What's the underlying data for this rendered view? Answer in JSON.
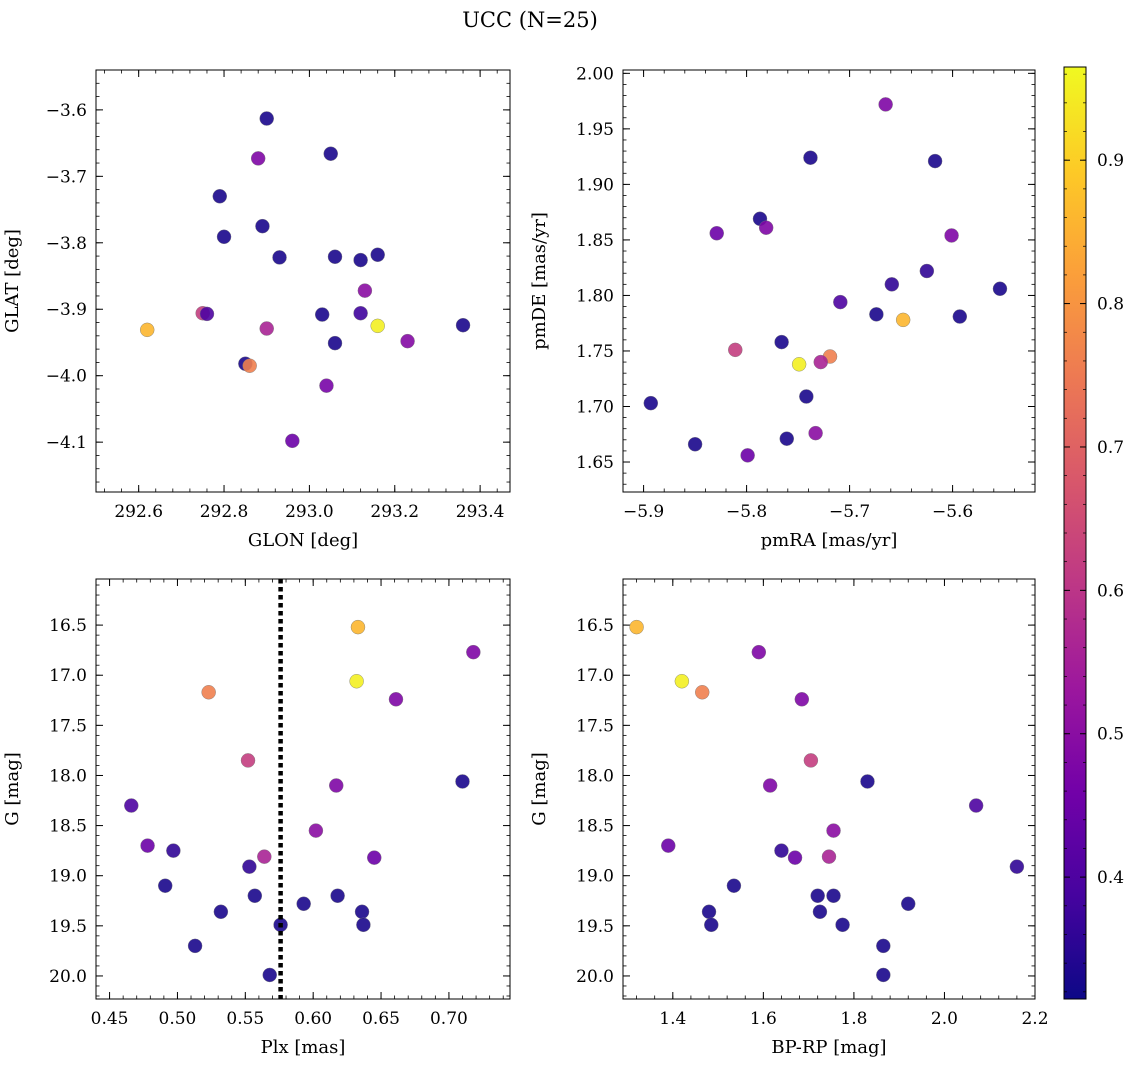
{
  "title": "UCC (N=25)",
  "chart_data": [
    {
      "type": "scatter",
      "xlabel": "GLON [deg]",
      "ylabel": "GLAT [deg]",
      "xlim": [
        292.5,
        293.47
      ],
      "ylim": [
        -4.175,
        -3.54
      ],
      "y_inverted": false,
      "xticks": [
        292.6,
        292.8,
        293.0,
        293.2,
        293.4
      ],
      "yticks": [
        -3.6,
        -3.7,
        -3.8,
        -3.9,
        -4.0,
        -4.1
      ],
      "xtick_labels": [
        "292.6",
        "292.8",
        "293.0",
        "293.2",
        "293.4"
      ],
      "ytick_labels": [
        "−3.6",
        "−3.7",
        "−3.8",
        "−3.9",
        "−4.0",
        "−4.1"
      ],
      "points": [
        {
          "x": 292.9,
          "y": -3.613,
          "c": 0.33
        },
        {
          "x": 293.05,
          "y": -3.666,
          "c": 0.33
        },
        {
          "x": 292.88,
          "y": -3.673,
          "c": 0.48
        },
        {
          "x": 292.79,
          "y": -3.73,
          "c": 0.33
        },
        {
          "x": 292.89,
          "y": -3.775,
          "c": 0.33
        },
        {
          "x": 292.8,
          "y": -3.791,
          "c": 0.33
        },
        {
          "x": 292.93,
          "y": -3.822,
          "c": 0.33
        },
        {
          "x": 293.06,
          "y": -3.821,
          "c": 0.33
        },
        {
          "x": 293.12,
          "y": -3.826,
          "c": 0.33
        },
        {
          "x": 293.16,
          "y": -3.818,
          "c": 0.33
        },
        {
          "x": 293.13,
          "y": -3.872,
          "c": 0.5
        },
        {
          "x": 292.75,
          "y": -3.906,
          "c": 0.62
        },
        {
          "x": 292.76,
          "y": -3.907,
          "c": 0.4
        },
        {
          "x": 293.03,
          "y": -3.908,
          "c": 0.33
        },
        {
          "x": 293.12,
          "y": -3.906,
          "c": 0.38
        },
        {
          "x": 292.62,
          "y": -3.931,
          "c": 0.86
        },
        {
          "x": 292.9,
          "y": -3.929,
          "c": 0.56
        },
        {
          "x": 293.16,
          "y": -3.925,
          "c": 0.95
        },
        {
          "x": 293.36,
          "y": -3.924,
          "c": 0.33
        },
        {
          "x": 293.23,
          "y": -3.948,
          "c": 0.49
        },
        {
          "x": 293.06,
          "y": -3.951,
          "c": 0.33
        },
        {
          "x": 292.85,
          "y": -3.982,
          "c": 0.33
        },
        {
          "x": 292.86,
          "y": -3.985,
          "c": 0.76
        },
        {
          "x": 293.04,
          "y": -4.015,
          "c": 0.47
        },
        {
          "x": 292.96,
          "y": -4.098,
          "c": 0.45
        }
      ]
    },
    {
      "type": "scatter",
      "xlabel": "pmRA [mas/yr]",
      "ylabel": "pmDE [mas/yr]",
      "xlim": [
        -5.92,
        -5.52
      ],
      "ylim": [
        1.623,
        2.003
      ],
      "y_inverted": false,
      "xticks": [
        -5.9,
        -5.8,
        -5.7,
        -5.6
      ],
      "yticks": [
        1.65,
        1.7,
        1.75,
        1.8,
        1.85,
        1.9,
        1.95,
        2.0
      ],
      "xtick_labels": [
        "−5.9",
        "−5.8",
        "−5.7",
        "−5.6"
      ],
      "ytick_labels": [
        "1.65",
        "1.70",
        "1.75",
        "1.80",
        "1.85",
        "1.90",
        "1.95",
        "2.00"
      ],
      "points": [
        {
          "x": -5.665,
          "y": 1.972,
          "c": 0.48
        },
        {
          "x": -5.738,
          "y": 1.924,
          "c": 0.33
        },
        {
          "x": -5.617,
          "y": 1.921,
          "c": 0.33
        },
        {
          "x": -5.787,
          "y": 1.869,
          "c": 0.33
        },
        {
          "x": -5.829,
          "y": 1.856,
          "c": 0.45
        },
        {
          "x": -5.781,
          "y": 1.861,
          "c": 0.48
        },
        {
          "x": -5.601,
          "y": 1.854,
          "c": 0.48
        },
        {
          "x": -5.625,
          "y": 1.822,
          "c": 0.36
        },
        {
          "x": -5.659,
          "y": 1.81,
          "c": 0.36
        },
        {
          "x": -5.554,
          "y": 1.806,
          "c": 0.33
        },
        {
          "x": -5.709,
          "y": 1.794,
          "c": 0.4
        },
        {
          "x": -5.674,
          "y": 1.783,
          "c": 0.33
        },
        {
          "x": -5.593,
          "y": 1.781,
          "c": 0.33
        },
        {
          "x": -5.648,
          "y": 1.778,
          "c": 0.86
        },
        {
          "x": -5.766,
          "y": 1.758,
          "c": 0.33
        },
        {
          "x": -5.811,
          "y": 1.751,
          "c": 0.62
        },
        {
          "x": -5.719,
          "y": 1.745,
          "c": 0.76
        },
        {
          "x": -5.728,
          "y": 1.74,
          "c": 0.56
        },
        {
          "x": -5.749,
          "y": 1.738,
          "c": 0.95
        },
        {
          "x": -5.742,
          "y": 1.709,
          "c": 0.33
        },
        {
          "x": -5.893,
          "y": 1.703,
          "c": 0.33
        },
        {
          "x": -5.733,
          "y": 1.676,
          "c": 0.5
        },
        {
          "x": -5.761,
          "y": 1.671,
          "c": 0.33
        },
        {
          "x": -5.85,
          "y": 1.666,
          "c": 0.33
        },
        {
          "x": -5.799,
          "y": 1.656,
          "c": 0.45
        }
      ]
    },
    {
      "type": "scatter",
      "xlabel": "Plx [mas]",
      "ylabel": "G [mag]",
      "xlim": [
        0.44,
        0.745
      ],
      "ylim": [
        20.23,
        16.04
      ],
      "y_inverted": true,
      "vline": 0.576,
      "xticks": [
        0.45,
        0.5,
        0.55,
        0.6,
        0.65,
        0.7
      ],
      "yticks": [
        16.5,
        17.0,
        17.5,
        18.0,
        18.5,
        19.0,
        19.5,
        20.0
      ],
      "xtick_labels": [
        "0.45",
        "0.50",
        "0.55",
        "0.60",
        "0.65",
        "0.70"
      ],
      "ytick_labels": [
        "16.5",
        "17.0",
        "17.5",
        "18.0",
        "18.5",
        "19.0",
        "19.5",
        "20.0"
      ],
      "points": [
        {
          "x": 0.633,
          "y": 16.52,
          "c": 0.86
        },
        {
          "x": 0.718,
          "y": 16.77,
          "c": 0.48
        },
        {
          "x": 0.632,
          "y": 17.06,
          "c": 0.95
        },
        {
          "x": 0.523,
          "y": 17.17,
          "c": 0.76
        },
        {
          "x": 0.661,
          "y": 17.24,
          "c": 0.48
        },
        {
          "x": 0.552,
          "y": 17.85,
          "c": 0.62
        },
        {
          "x": 0.71,
          "y": 18.06,
          "c": 0.33
        },
        {
          "x": 0.617,
          "y": 18.1,
          "c": 0.48
        },
        {
          "x": 0.466,
          "y": 18.3,
          "c": 0.4
        },
        {
          "x": 0.602,
          "y": 18.55,
          "c": 0.5
        },
        {
          "x": 0.478,
          "y": 18.7,
          "c": 0.45
        },
        {
          "x": 0.497,
          "y": 18.75,
          "c": 0.36
        },
        {
          "x": 0.564,
          "y": 18.81,
          "c": 0.56
        },
        {
          "x": 0.645,
          "y": 18.82,
          "c": 0.45
        },
        {
          "x": 0.553,
          "y": 18.91,
          "c": 0.36
        },
        {
          "x": 0.491,
          "y": 19.1,
          "c": 0.33
        },
        {
          "x": 0.557,
          "y": 19.2,
          "c": 0.33
        },
        {
          "x": 0.618,
          "y": 19.2,
          "c": 0.33
        },
        {
          "x": 0.593,
          "y": 19.28,
          "c": 0.33
        },
        {
          "x": 0.532,
          "y": 19.36,
          "c": 0.33
        },
        {
          "x": 0.636,
          "y": 19.36,
          "c": 0.33
        },
        {
          "x": 0.576,
          "y": 19.49,
          "c": 0.33
        },
        {
          "x": 0.637,
          "y": 19.49,
          "c": 0.33
        },
        {
          "x": 0.513,
          "y": 19.7,
          "c": 0.33
        },
        {
          "x": 0.568,
          "y": 19.99,
          "c": 0.33
        }
      ]
    },
    {
      "type": "scatter",
      "xlabel": "BP-RP [mag]",
      "ylabel": "G [mag]",
      "xlim": [
        1.29,
        2.2
      ],
      "ylim": [
        20.23,
        16.04
      ],
      "y_inverted": true,
      "xticks": [
        1.4,
        1.6,
        1.8,
        2.0,
        2.2
      ],
      "yticks": [
        16.5,
        17.0,
        17.5,
        18.0,
        18.5,
        19.0,
        19.5,
        20.0
      ],
      "xtick_labels": [
        "1.4",
        "1.6",
        "1.8",
        "2.0",
        "2.2"
      ],
      "ytick_labels": [
        "16.5",
        "17.0",
        "17.5",
        "18.0",
        "18.5",
        "19.0",
        "19.5",
        "20.0"
      ],
      "points": [
        {
          "x": 1.32,
          "y": 16.52,
          "c": 0.86
        },
        {
          "x": 1.59,
          "y": 16.77,
          "c": 0.48
        },
        {
          "x": 1.42,
          "y": 17.06,
          "c": 0.95
        },
        {
          "x": 1.465,
          "y": 17.17,
          "c": 0.76
        },
        {
          "x": 1.685,
          "y": 17.24,
          "c": 0.48
        },
        {
          "x": 1.705,
          "y": 17.85,
          "c": 0.62
        },
        {
          "x": 1.83,
          "y": 18.06,
          "c": 0.33
        },
        {
          "x": 1.615,
          "y": 18.1,
          "c": 0.48
        },
        {
          "x": 2.07,
          "y": 18.3,
          "c": 0.4
        },
        {
          "x": 1.755,
          "y": 18.55,
          "c": 0.5
        },
        {
          "x": 1.39,
          "y": 18.7,
          "c": 0.45
        },
        {
          "x": 1.64,
          "y": 18.75,
          "c": 0.36
        },
        {
          "x": 1.745,
          "y": 18.81,
          "c": 0.56
        },
        {
          "x": 1.67,
          "y": 18.82,
          "c": 0.45
        },
        {
          "x": 2.16,
          "y": 18.91,
          "c": 0.36
        },
        {
          "x": 1.535,
          "y": 19.1,
          "c": 0.33
        },
        {
          "x": 1.72,
          "y": 19.2,
          "c": 0.33
        },
        {
          "x": 1.755,
          "y": 19.2,
          "c": 0.33
        },
        {
          "x": 1.92,
          "y": 19.28,
          "c": 0.33
        },
        {
          "x": 1.48,
          "y": 19.36,
          "c": 0.33
        },
        {
          "x": 1.725,
          "y": 19.36,
          "c": 0.33
        },
        {
          "x": 1.485,
          "y": 19.49,
          "c": 0.33
        },
        {
          "x": 1.775,
          "y": 19.49,
          "c": 0.33
        },
        {
          "x": 1.865,
          "y": 19.7,
          "c": 0.33
        },
        {
          "x": 1.865,
          "y": 19.99,
          "c": 0.33
        }
      ]
    }
  ],
  "colorbar": {
    "colormap": "plasma",
    "range": [
      0.315,
      0.965
    ],
    "ticks": [
      0.4,
      0.5,
      0.6,
      0.7,
      0.8,
      0.9
    ],
    "tick_labels": [
      "0.4",
      "0.5",
      "0.6",
      "0.7",
      "0.8",
      "0.9"
    ]
  },
  "plasma_stops": [
    "#0d0887",
    "#46039f",
    "#7201a8",
    "#9c179e",
    "#bd3786",
    "#d8576b",
    "#ed7953",
    "#fb9f3a",
    "#fdca26",
    "#f0f921"
  ]
}
